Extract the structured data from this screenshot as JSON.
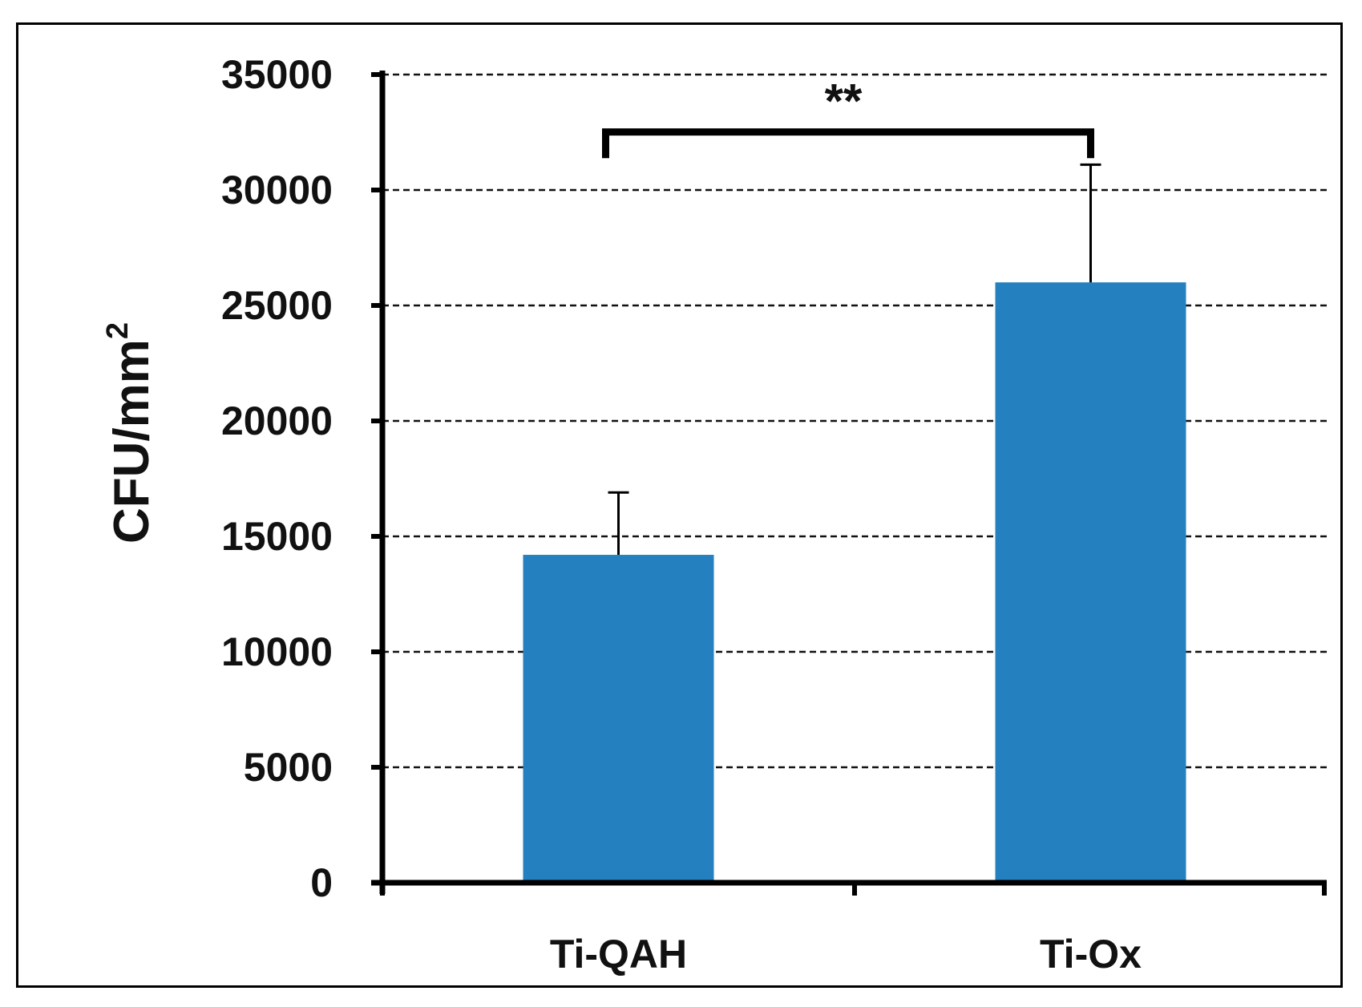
{
  "chart_data": {
    "type": "bar",
    "categories": [
      "Ti-QAH",
      "Ti-Ox"
    ],
    "values": [
      14200,
      26000
    ],
    "error_upper": [
      2700,
      5100
    ],
    "title": "",
    "xlabel": "",
    "ylabel": "CFU/mm",
    "ylabel_superscript": "2",
    "ylim": [
      0,
      35000
    ],
    "yticks": [
      0,
      5000,
      10000,
      15000,
      20000,
      25000,
      30000,
      35000
    ],
    "ytick_labels": [
      "0",
      "5000",
      "10000",
      "15000",
      "20000",
      "25000",
      "30000",
      "35000"
    ],
    "grid": "horizontal dashed",
    "legend": "none",
    "bar_color": "#2580BF",
    "annotation": {
      "text": "**",
      "between": [
        "Ti-QAH",
        "Ti-Ox"
      ],
      "level": 31900,
      "top": 33900
    }
  }
}
